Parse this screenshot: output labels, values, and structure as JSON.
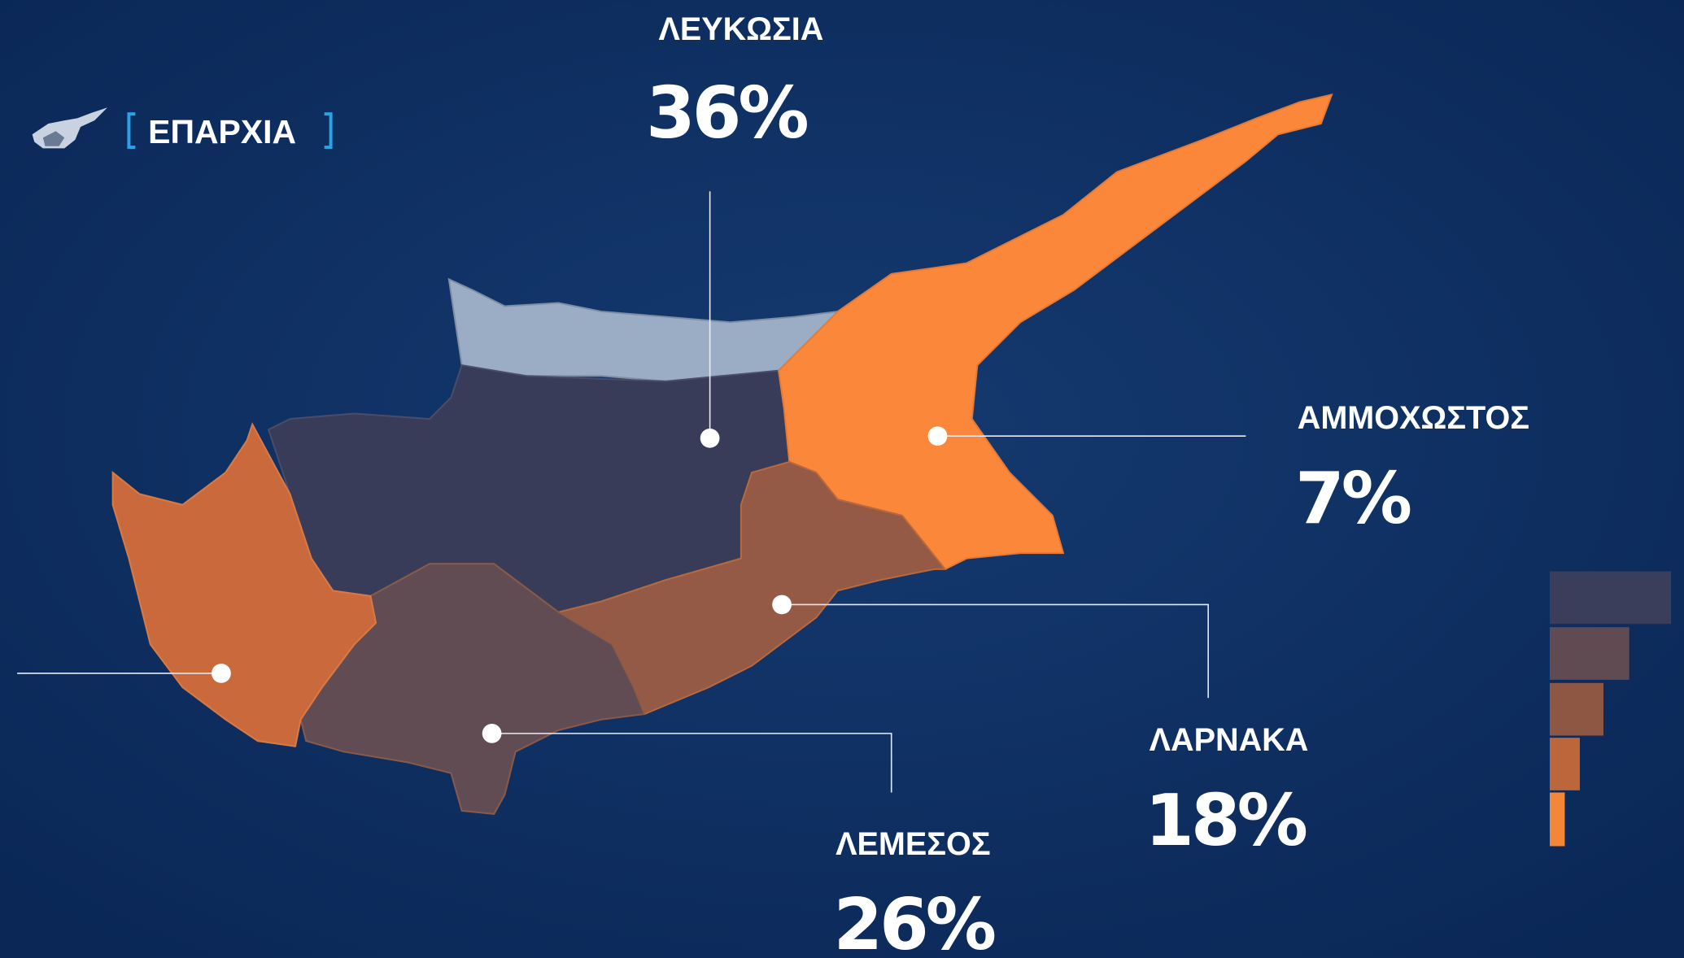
{
  "header": {
    "title": "ΕΠΑΡΧΙΑ"
  },
  "regions": [
    {
      "name": "ΛΕΥΚΩΣΙΑ",
      "value": "36%"
    },
    {
      "name": "ΑΜΜΟΧΩΣΤΟΣ",
      "value": "7%"
    },
    {
      "name": "ΛΑΡΝΑΚΑ",
      "value": "18%"
    },
    {
      "name": "ΛΕΜΕΣΟΣ",
      "value": "26%"
    }
  ]
}
